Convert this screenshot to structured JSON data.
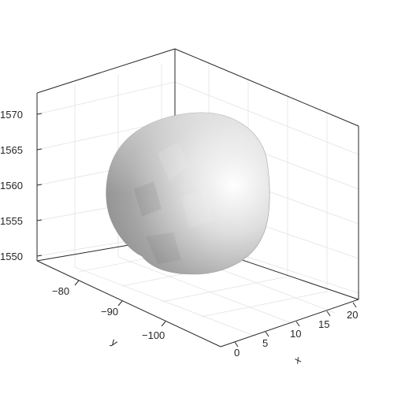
{
  "figure": {
    "type": "3d-surface",
    "surface_description_color": "#a8a8a8",
    "axes": {
      "x": {
        "label": "x",
        "ticks": [
          "0",
          "5",
          "10",
          "15",
          "20"
        ]
      },
      "y": {
        "label": "y",
        "ticks": [
          "−80",
          "−90",
          "−100"
        ]
      },
      "z": {
        "label": "",
        "ticks": [
          "1550",
          "1555",
          "1560",
          "1565",
          "1570"
        ]
      }
    }
  }
}
